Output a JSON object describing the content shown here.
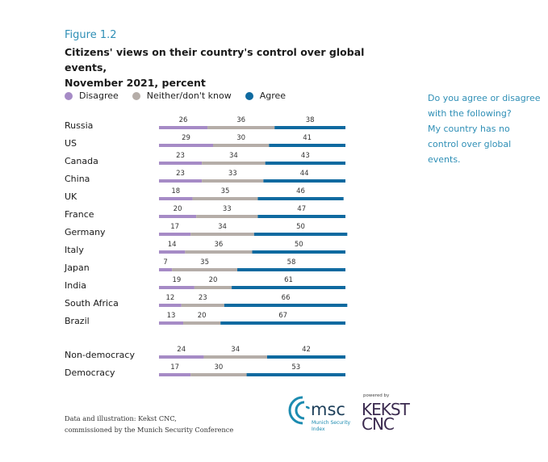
{
  "figure_label": "Figure 1.2",
  "title_line1": "Citizens' views on their country's control over global events,",
  "title_line2": "November 2021, percent",
  "question": "Do you agree or disagree with the following? My country has no control over global events.",
  "question_lines": [
    "Do you agree or disagree",
    "with the following?",
    "My country has no",
    "control over global",
    "events."
  ],
  "footer_line1": "Data and illustration: Kekst CNC,",
  "footer_line2": "commissioned by the Munich Security Conference",
  "logos": {
    "msc_text": "msc",
    "msc_sub1": "Munich Security",
    "msc_sub2": "Index",
    "powered_by": "powered by",
    "kekst_line1": "KEKST",
    "kekst_line2": "CNC"
  },
  "colors": {
    "disagree": "#a68bc6",
    "neither": "#b5ada8",
    "agree": "#0f6aa0",
    "accent": "#2f8fb6"
  },
  "chart_data": {
    "type": "bar",
    "orientation": "horizontal",
    "stacked": true,
    "title": "Citizens' views on their country's control over global events, November 2021, percent",
    "xlabel": "",
    "ylabel": "",
    "xlim": [
      0,
      100
    ],
    "legend": [
      "Disagree",
      "Neither/don't know",
      "Agree"
    ],
    "legend_position": "top-left",
    "categories": [
      "Russia",
      "US",
      "Canada",
      "China",
      "UK",
      "France",
      "Germany",
      "Italy",
      "Japan",
      "India",
      "South Africa",
      "Brazil",
      "Non-democracy",
      "Democracy"
    ],
    "series": [
      {
        "name": "Disagree",
        "values": [
          26,
          29,
          23,
          23,
          18,
          20,
          17,
          14,
          7,
          19,
          12,
          13,
          24,
          17
        ]
      },
      {
        "name": "Neither/don't know",
        "values": [
          36,
          30,
          34,
          33,
          35,
          33,
          34,
          36,
          35,
          20,
          23,
          20,
          34,
          30
        ]
      },
      {
        "name": "Agree",
        "values": [
          38,
          41,
          43,
          44,
          46,
          47,
          50,
          50,
          58,
          61,
          66,
          67,
          42,
          53
        ]
      }
    ]
  }
}
